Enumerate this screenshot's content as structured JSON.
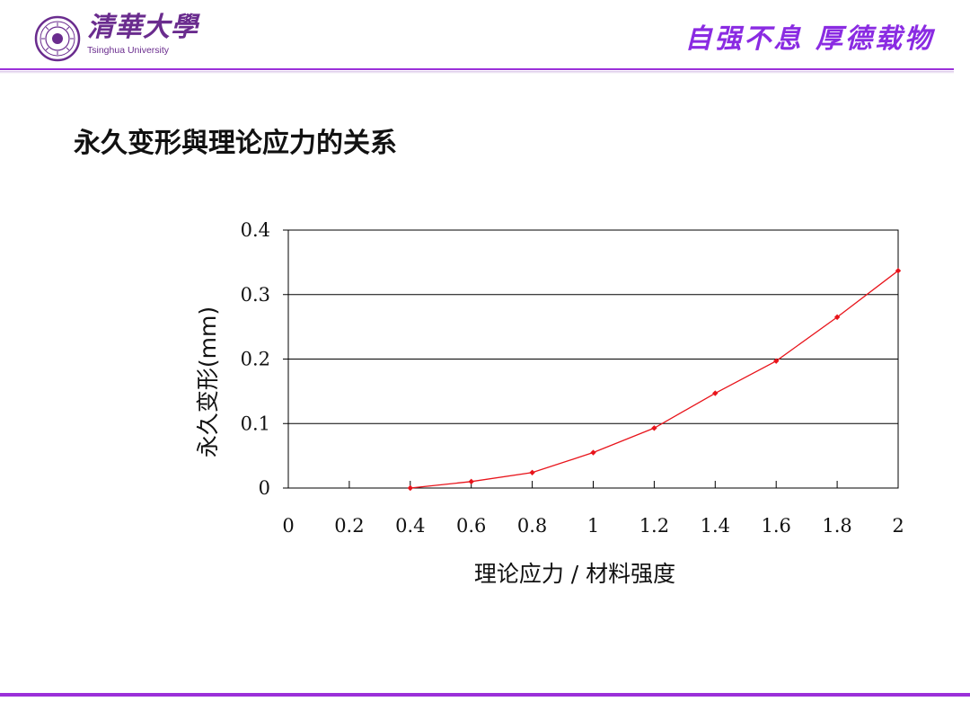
{
  "header": {
    "logo_cn": "清華大學",
    "logo_en": "Tsinghua University",
    "motto": "自强不息 厚德载物"
  },
  "slide": {
    "title": "永久变形與理论应力的关系"
  },
  "colors": {
    "accent": "#9b30d9",
    "series": "#e8141b"
  },
  "chart_data": {
    "type": "line",
    "xlabel": "理论应力 / 材料强度",
    "ylabel": "永久变形(mm)",
    "xlim": [
      0,
      2
    ],
    "ylim": [
      0,
      0.4
    ],
    "x_ticks": [
      "0",
      "0.2",
      "0.4",
      "0.6",
      "0.8",
      "1",
      "1.2",
      "1.4",
      "1.6",
      "1.8",
      "2"
    ],
    "y_ticks": [
      "0",
      "0.1",
      "0.2",
      "0.3",
      "0.4"
    ],
    "grid": "horizontal",
    "series": [
      {
        "x": [
          0.4,
          0.6,
          0.8,
          1.0,
          1.2,
          1.4,
          1.6,
          1.8,
          2.0
        ],
        "y": [
          0.0,
          0.01,
          0.024,
          0.055,
          0.093,
          0.147,
          0.197,
          0.265,
          0.337
        ]
      }
    ]
  }
}
